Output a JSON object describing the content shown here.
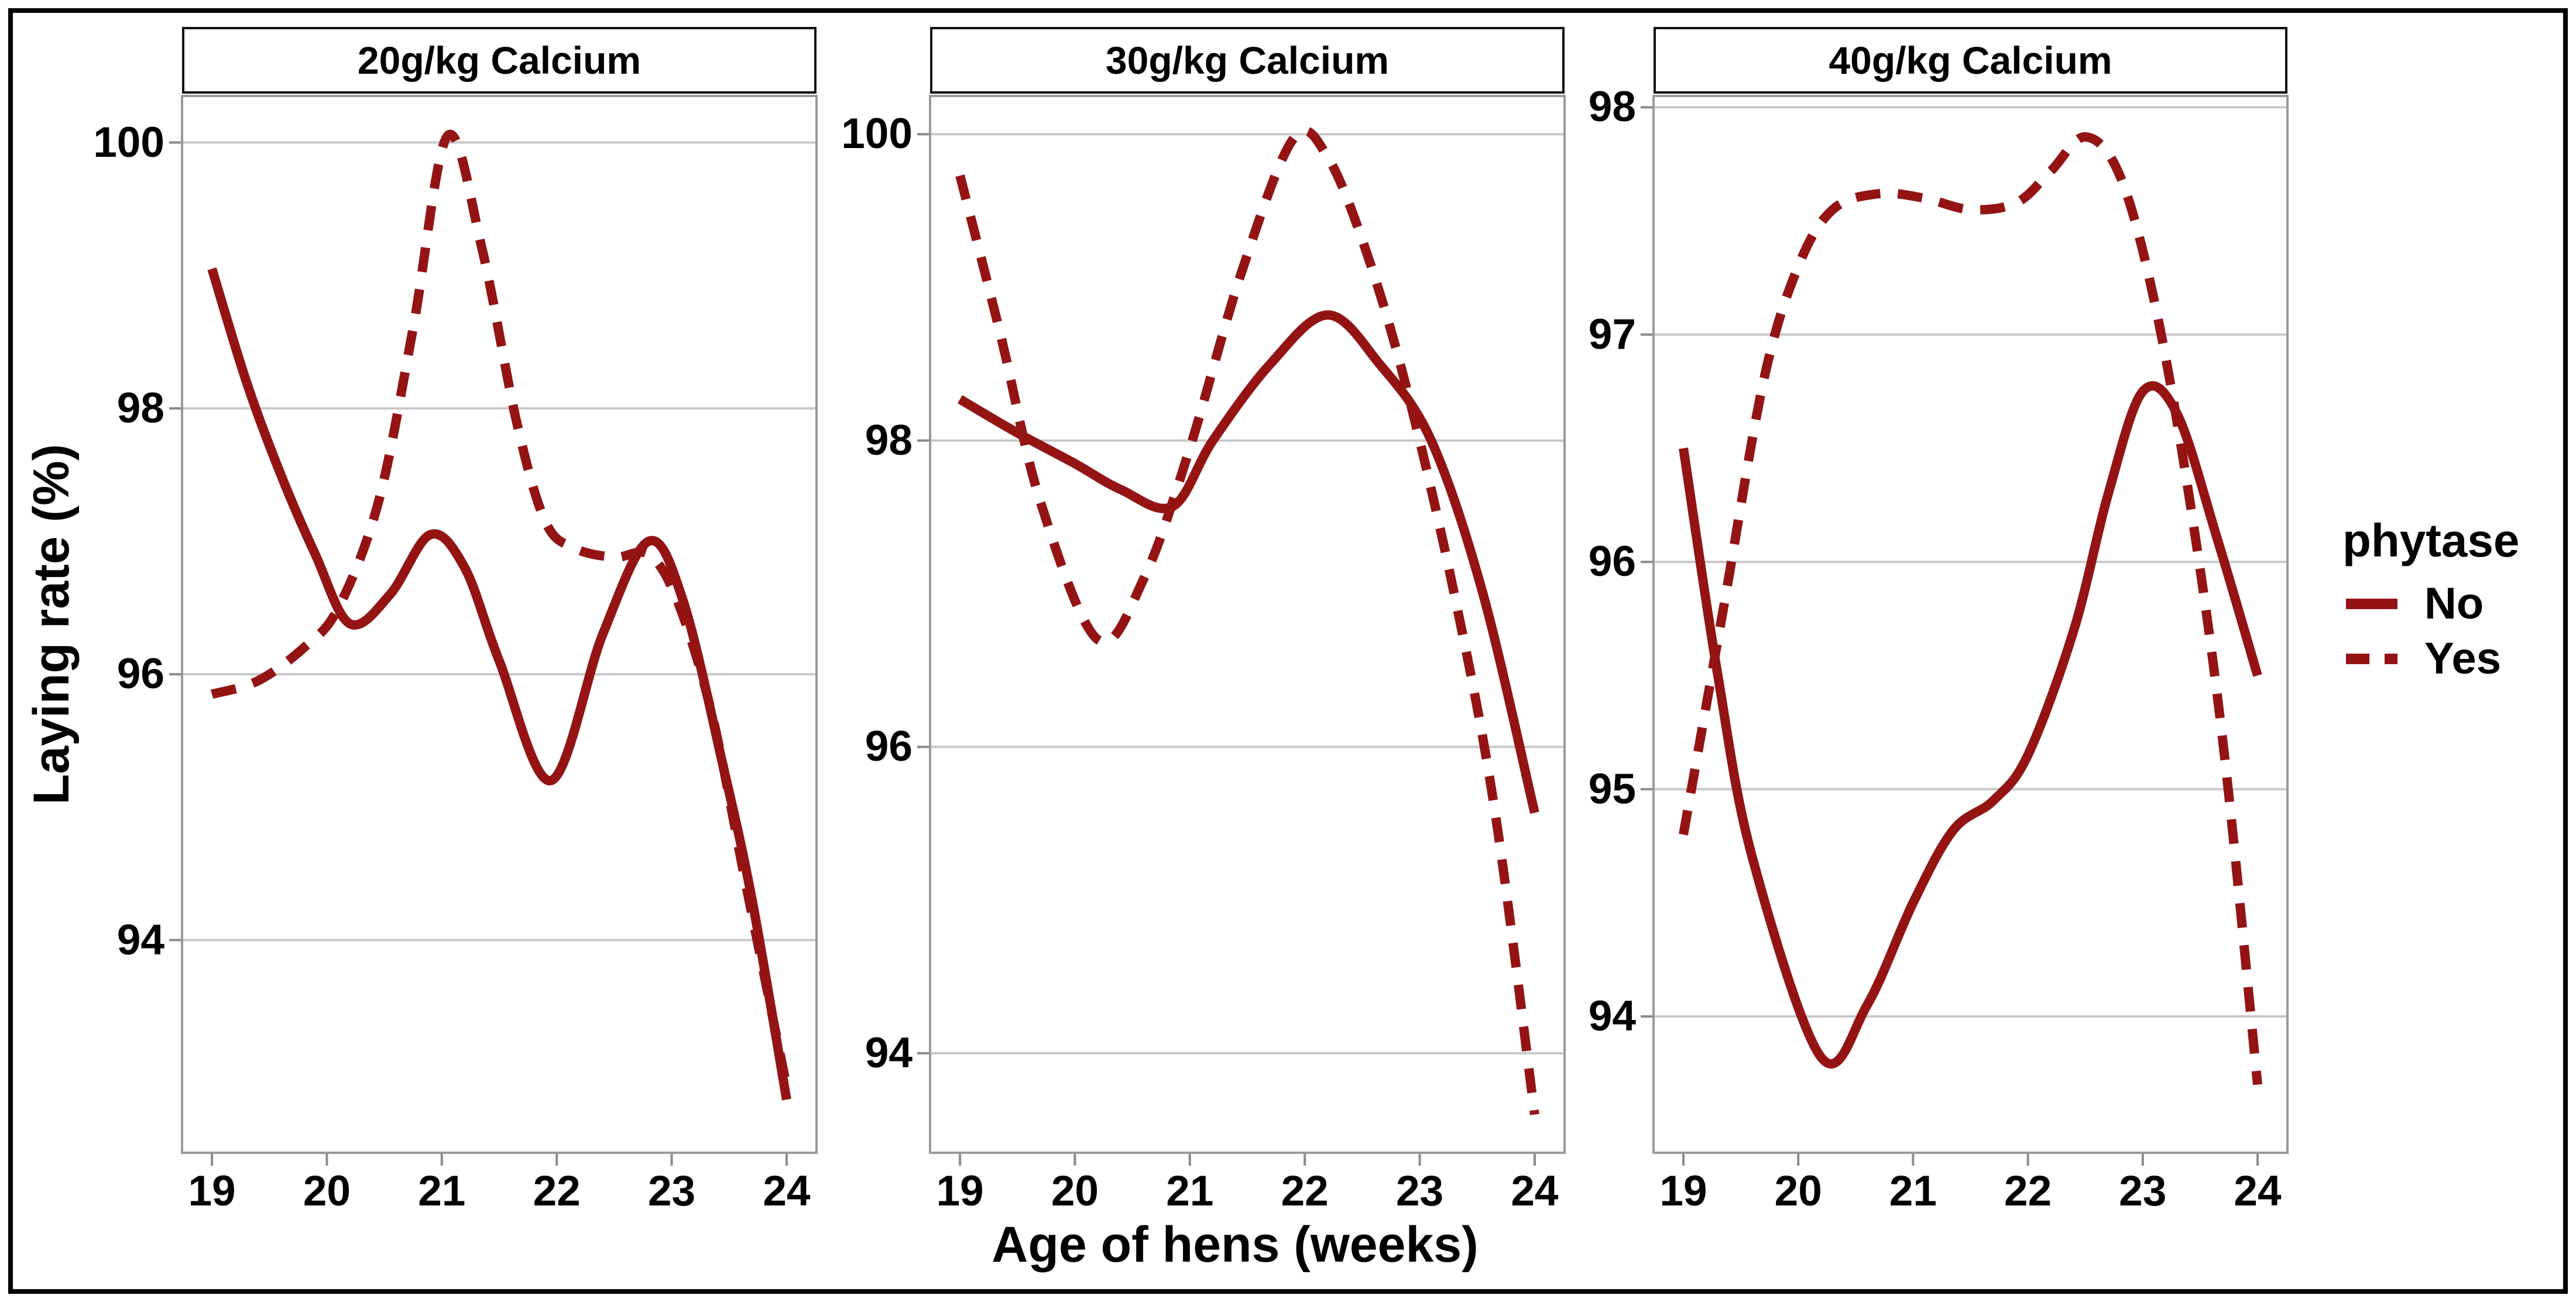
{
  "chart_data": {
    "type": "line",
    "xlabel": "Age of hens (weeks)",
    "ylabel": "Laying rate (%)",
    "x": {
      "lim": [
        18.74,
        24.26
      ],
      "ticks": [
        19,
        20,
        21,
        22,
        23,
        24
      ]
    },
    "grid": "horizontal-major-only",
    "line_color": "#941414",
    "gridline_color": "#C8C8C8",
    "panel_border_color": "#9A9A9A",
    "tick_color": "#8A8A8A",
    "legend": {
      "title": "phytase",
      "position": "right",
      "entries": [
        {
          "label": "No",
          "linetype": "solid"
        },
        {
          "label": "Yes",
          "linetype": "dashed"
        }
      ]
    },
    "facets": [
      {
        "title": "20g/kg Calcium",
        "ylim": [
          92.4,
          100.35
        ],
        "yticks": [
          94,
          96,
          98,
          100
        ],
        "series": [
          {
            "name": "No",
            "linetype": "solid",
            "points": [
              [
                19,
                99.05
              ],
              [
                19.3,
                98.2
              ],
              [
                19.6,
                97.5
              ],
              [
                19.9,
                96.9
              ],
              [
                20.2,
                96.38
              ],
              [
                20.55,
                96.6
              ],
              [
                20.9,
                97.05
              ],
              [
                21.2,
                96.8
              ],
              [
                21.5,
                96.1
              ],
              [
                21.95,
                95.2
              ],
              [
                22.4,
                96.3
              ],
              [
                22.8,
                97.0
              ],
              [
                23.1,
                96.55
              ],
              [
                23.45,
                95.3
              ],
              [
                23.7,
                94.3
              ],
              [
                24,
                92.8
              ]
            ]
          },
          {
            "name": "Yes",
            "linetype": "dashed",
            "points": [
              [
                19,
                95.85
              ],
              [
                19.4,
                95.95
              ],
              [
                19.8,
                96.2
              ],
              [
                20.1,
                96.5
              ],
              [
                20.45,
                97.3
              ],
              [
                20.75,
                98.6
              ],
              [
                21.05,
                100.05
              ],
              [
                21.35,
                99.2
              ],
              [
                21.65,
                97.9
              ],
              [
                21.9,
                97.15
              ],
              [
                22.15,
                96.95
              ],
              [
                22.5,
                96.88
              ],
              [
                22.8,
                96.9
              ],
              [
                23.05,
                96.55
              ],
              [
                23.35,
                95.7
              ],
              [
                23.65,
                94.4
              ],
              [
                24,
                92.9
              ]
            ]
          }
        ]
      },
      {
        "title": "30g/kg Calcium",
        "ylim": [
          93.35,
          100.25
        ],
        "yticks": [
          94,
          96,
          98,
          100
        ],
        "series": [
          {
            "name": "No",
            "linetype": "solid",
            "points": [
              [
                19,
                98.27
              ],
              [
                19.5,
                98.05
              ],
              [
                20,
                97.85
              ],
              [
                20.4,
                97.68
              ],
              [
                20.85,
                97.57
              ],
              [
                21.2,
                98.0
              ],
              [
                21.7,
                98.5
              ],
              [
                22.2,
                98.82
              ],
              [
                22.65,
                98.5
              ],
              [
                23.1,
                98.0
              ],
              [
                23.55,
                97.0
              ],
              [
                24,
                95.57
              ]
            ]
          },
          {
            "name": "Yes",
            "linetype": "dashed",
            "points": [
              [
                19,
                99.73
              ],
              [
                19.35,
                98.7
              ],
              [
                19.7,
                97.6
              ],
              [
                20.2,
                96.7
              ],
              [
                20.6,
                97.1
              ],
              [
                21,
                97.95
              ],
              [
                21.45,
                99.1
              ],
              [
                21.9,
                99.97
              ],
              [
                22.2,
                99.85
              ],
              [
                22.55,
                99.2
              ],
              [
                22.9,
                98.3
              ],
              [
                23.3,
                97.0
              ],
              [
                23.65,
                95.6
              ],
              [
                24,
                93.6
              ]
            ]
          }
        ]
      },
      {
        "title": "40g/kg Calcium",
        "ylim": [
          93.4,
          98.05
        ],
        "yticks": [
          94,
          95,
          96,
          97,
          98
        ],
        "series": [
          {
            "name": "No",
            "linetype": "solid",
            "points": [
              [
                19,
                96.5
              ],
              [
                19.3,
                95.5
              ],
              [
                19.6,
                94.7
              ],
              [
                20.2,
                93.82
              ],
              [
                20.6,
                94.05
              ],
              [
                21,
                94.5
              ],
              [
                21.35,
                94.82
              ],
              [
                21.7,
                94.95
              ],
              [
                22,
                95.15
              ],
              [
                22.4,
                95.7
              ],
              [
                22.7,
                96.3
              ],
              [
                23,
                96.75
              ],
              [
                23.3,
                96.65
              ],
              [
                23.65,
                96.1
              ],
              [
                24,
                95.5
              ]
            ]
          },
          {
            "name": "Yes",
            "linetype": "dashed",
            "points": [
              [
                19,
                94.8
              ],
              [
                19.35,
                95.8
              ],
              [
                19.7,
                96.8
              ],
              [
                20,
                97.3
              ],
              [
                20.3,
                97.55
              ],
              [
                20.7,
                97.62
              ],
              [
                21.1,
                97.6
              ],
              [
                21.5,
                97.55
              ],
              [
                21.9,
                97.58
              ],
              [
                22.2,
                97.72
              ],
              [
                22.5,
                97.87
              ],
              [
                22.8,
                97.7
              ],
              [
                23.1,
                97.15
              ],
              [
                23.4,
                96.3
              ],
              [
                23.7,
                95.2
              ],
              [
                24,
                93.7
              ]
            ]
          }
        ]
      }
    ]
  }
}
